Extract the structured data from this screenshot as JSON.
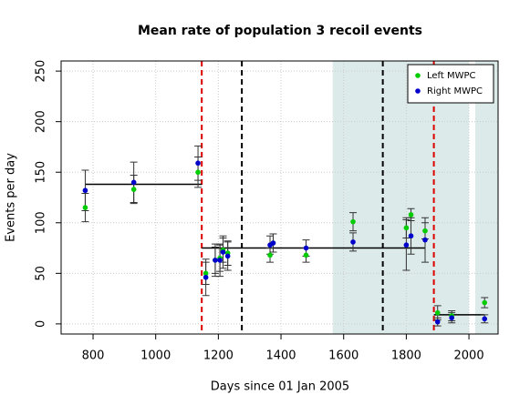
{
  "chart_data": {
    "type": "scatter",
    "title": "Mean rate of population 3 recoil events",
    "xlabel": "Days since 01 Jan 2005",
    "ylabel": "Events per day",
    "x": [
      775,
      930,
      1135,
      1160,
      1190,
      1205,
      1215,
      1230,
      1365,
      1375,
      1480,
      1630,
      1800,
      1815,
      1860,
      1900,
      1945,
      2050
    ],
    "series": [
      {
        "name": "Left MWPC",
        "color": "#00cc00",
        "values": [
          115,
          133,
          150,
          50,
          63,
          65,
          73,
          70,
          68,
          80,
          68,
          101,
          95,
          108,
          92,
          11,
          8,
          21
        ],
        "errors": [
          14,
          14,
          15,
          11,
          13,
          13,
          12,
          12,
          7,
          9,
          7,
          9,
          10,
          6,
          8,
          7,
          5,
          5
        ]
      },
      {
        "name": "Right MWPC",
        "color": "#0000cc",
        "values": [
          132,
          140,
          159,
          46,
          63,
          63,
          71,
          67,
          78,
          80,
          75,
          81,
          78,
          87,
          83,
          2,
          6,
          5
        ],
        "errors": [
          20,
          20,
          17,
          18,
          16,
          16,
          16,
          14,
          9,
          9,
          8,
          9,
          25,
          18,
          22,
          4,
          5,
          4
        ]
      }
    ],
    "vlines": [
      {
        "x": 1147,
        "color": "#dd0000"
      },
      {
        "x": 1275,
        "color": "#000000"
      },
      {
        "x": 1725,
        "color": "#000000"
      },
      {
        "x": 1888,
        "color": "#dd0000"
      }
    ],
    "shaded": [
      [
        1565,
        2000
      ],
      [
        2020,
        2093
      ]
    ],
    "shade_color": "#dceaea",
    "means": [
      {
        "x": [
          775,
          1147
        ],
        "y": 138
      },
      {
        "x": [
          1147,
          1860
        ],
        "y": 75
      },
      {
        "x": [
          1888,
          2050
        ],
        "y": 9
      }
    ],
    "xlim": [
      698,
      2093
    ],
    "ylim": [
      -10,
      260
    ],
    "xticks": [
      800,
      1000,
      1200,
      1400,
      1600,
      1800,
      2000
    ],
    "yticks": [
      0,
      50,
      100,
      150,
      200,
      250
    ],
    "grid": true,
    "legend": "top-right"
  }
}
